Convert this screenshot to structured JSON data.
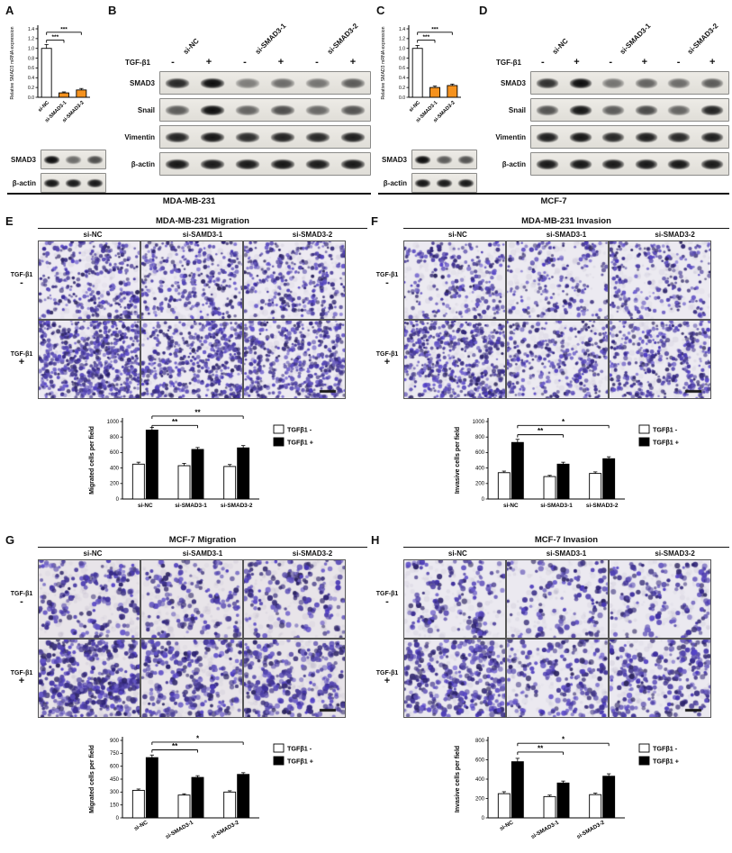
{
  "colors": {
    "knockdown_bar_orange": "#f5921e",
    "tgf_minus_bar": "#ffffff",
    "tgf_plus_bar": "#000000",
    "cell_stain_purple": "#4a3f94"
  },
  "top": {
    "A": {
      "panel_label": "A",
      "cell_line": "MDA-MB-231",
      "blot": {
        "rows": [
          {
            "label": "SMAD3",
            "bands": [
              1.0,
              0.45,
              0.62
            ]
          },
          {
            "label": "β-actin",
            "bands": [
              0.95,
              0.92,
              0.94
            ]
          }
        ]
      }
    },
    "B": {
      "panel_label": "B",
      "group_labels": [
        "si-NC",
        "si-SMAD3-1",
        "si-SMAD3-2"
      ],
      "tgf_label": "TGF-β1",
      "lane_signs": [
        "-",
        "+",
        "-",
        "+",
        "-",
        "+"
      ],
      "blot": {
        "rows": [
          {
            "label": "SMAD3",
            "bands": [
              0.85,
              1.0,
              0.35,
              0.45,
              0.4,
              0.55
            ]
          },
          {
            "label": "Snail",
            "bands": [
              0.55,
              1.0,
              0.5,
              0.62,
              0.48,
              0.6
            ]
          },
          {
            "label": "Vimentin",
            "bands": [
              0.88,
              0.95,
              0.82,
              0.88,
              0.85,
              0.9
            ]
          },
          {
            "label": "β-actin",
            "bands": [
              0.95,
              0.93,
              0.94,
              0.95,
              0.93,
              0.94
            ]
          }
        ]
      }
    },
    "C": {
      "panel_label": "C",
      "cell_line": "MCF-7",
      "blot": {
        "rows": [
          {
            "label": "SMAD3",
            "bands": [
              1.0,
              0.55,
              0.6
            ]
          },
          {
            "label": "β-actin",
            "bands": [
              0.95,
              0.93,
              0.94
            ]
          }
        ]
      }
    },
    "D": {
      "panel_label": "D",
      "group_labels": [
        "si-NC",
        "si-SMAD3-1",
        "si-SMAD3-2"
      ],
      "tgf_label": "TGF-β1",
      "lane_signs": [
        "-",
        "+",
        "-",
        "+",
        "-",
        "+"
      ],
      "blot": {
        "rows": [
          {
            "label": "SMAD3",
            "bands": [
              0.8,
              1.0,
              0.4,
              0.5,
              0.45,
              0.55
            ]
          },
          {
            "label": "Snail",
            "bands": [
              0.6,
              0.95,
              0.55,
              0.65,
              0.5,
              0.88
            ]
          },
          {
            "label": "Vimentin",
            "bands": [
              0.9,
              0.95,
              0.85,
              0.9,
              0.85,
              0.9
            ]
          },
          {
            "label": "β-actin",
            "bands": [
              0.94,
              0.95,
              0.93,
              0.94,
              0.95,
              0.93
            ]
          }
        ]
      }
    }
  },
  "transwell": {
    "E": {
      "panel_label": "E",
      "title": "MDA-MB-231 Migration",
      "col_headers": [
        "si-NC",
        "si-SAMD3-1",
        "si-SMAD3-2"
      ],
      "row_labels": [
        {
          "line1": "TGF-β1",
          "line2": "-"
        },
        {
          "line1": "TGF-β1",
          "line2": "+"
        }
      ]
    },
    "F": {
      "panel_label": "F",
      "title": "MDA-MB-231 Invasion",
      "col_headers": [
        "si-NC",
        "si-SMAD3-1",
        "si-SMAD3-2"
      ],
      "row_labels": [
        {
          "line1": "TGF-β1",
          "line2": "-"
        },
        {
          "line1": "TGF-β1",
          "line2": "+"
        }
      ]
    },
    "G": {
      "panel_label": "G",
      "title": "MCF-7 Migration",
      "col_headers": [
        "si-NC",
        "si-SAMD3-1",
        "si-SMAD3-2"
      ],
      "row_labels": [
        {
          "line1": "TGF-β1",
          "line2": "-"
        },
        {
          "line1": "TGF-β1",
          "line2": "+"
        }
      ]
    },
    "H": {
      "panel_label": "H",
      "title": "MCF-7 Invasion",
      "col_headers": [
        "si-NC",
        "si-SMAD3-1",
        "si-SMAD3-2"
      ],
      "row_labels": [
        {
          "line1": "TGF-β1",
          "line2": "-"
        },
        {
          "line1": "TGF-β1",
          "line2": "+"
        }
      ]
    }
  },
  "chart_data": [
    {
      "id": "A",
      "type": "bar",
      "title": "",
      "xlabel": "",
      "ylabel": "Relative SMAD3 mRNA expression",
      "categories": [
        "si-NC",
        "si-SMAD3-1",
        "si-SMAD3-2"
      ],
      "values": [
        1.0,
        0.09,
        0.15
      ],
      "errors": [
        0.08,
        0.02,
        0.03
      ],
      "bar_colors": [
        "#ffffff",
        "#f5921e",
        "#f5921e"
      ],
      "ylim": [
        0,
        1.4
      ],
      "ytick_step": 0.2,
      "significance": [
        {
          "from": 0,
          "to": 1,
          "label": "***",
          "y": 1.17
        },
        {
          "from": 0,
          "to": 2,
          "label": "***",
          "y": 1.33
        }
      ]
    },
    {
      "id": "C",
      "type": "bar",
      "title": "",
      "xlabel": "",
      "ylabel": "Relative SMAD3 mRNA expression",
      "categories": [
        "si-NC",
        "si-SMAD3-1",
        "si-SMAD3-2"
      ],
      "values": [
        1.0,
        0.2,
        0.24
      ],
      "errors": [
        0.06,
        0.03,
        0.03
      ],
      "bar_colors": [
        "#ffffff",
        "#f5921e",
        "#f5921e"
      ],
      "ylim": [
        0,
        1.4
      ],
      "ytick_step": 0.2,
      "significance": [
        {
          "from": 0,
          "to": 1,
          "label": "***",
          "y": 1.17
        },
        {
          "from": 0,
          "to": 2,
          "label": "***",
          "y": 1.33
        }
      ]
    },
    {
      "id": "E",
      "type": "bar",
      "title": "",
      "xlabel": "",
      "ylabel": "Migrated cells per field",
      "categories": [
        "si-NC",
        "si-SMAD3-1",
        "si-SMAD3-2"
      ],
      "series": [
        {
          "name": "TGFβ1 -",
          "color": "#ffffff",
          "values": [
            450,
            430,
            420
          ],
          "errors": [
            25,
            30,
            25
          ]
        },
        {
          "name": "TGFβ1 +",
          "color": "#000000",
          "values": [
            890,
            640,
            660
          ],
          "errors": [
            35,
            25,
            30
          ]
        }
      ],
      "ylim": [
        0,
        1000
      ],
      "ytick_step": 200,
      "legend_position": "right",
      "significance": [
        {
          "from": 0,
          "to": 1,
          "label": "**",
          "y": 950
        },
        {
          "from": 0,
          "to": 2,
          "label": "**",
          "y": 1070
        }
      ]
    },
    {
      "id": "F",
      "type": "bar",
      "title": "",
      "xlabel": "",
      "ylabel": "Invasive cells per field",
      "categories": [
        "si-NC",
        "si-SMAD3-1",
        "si-SMAD3-2"
      ],
      "series": [
        {
          "name": "TGFβ1 -",
          "color": "#ffffff",
          "values": [
            340,
            290,
            330
          ],
          "errors": [
            20,
            15,
            20
          ]
        },
        {
          "name": "TGFβ1 +",
          "color": "#000000",
          "values": [
            730,
            450,
            520
          ],
          "errors": [
            40,
            25,
            25
          ]
        }
      ],
      "ylim": [
        0,
        1000
      ],
      "ytick_step": 200,
      "legend_position": "right",
      "significance": [
        {
          "from": 0,
          "to": 1,
          "label": "**",
          "y": 830
        },
        {
          "from": 0,
          "to": 2,
          "label": "*",
          "y": 950
        }
      ]
    },
    {
      "id": "G",
      "type": "bar",
      "title": "",
      "xlabel": "",
      "ylabel": "Migrated cells per field",
      "categories": [
        "si-NC",
        "si-SMAD3-1",
        "si-SMAD3-2"
      ],
      "series": [
        {
          "name": "TGFβ1 -",
          "color": "#ffffff",
          "values": [
            320,
            265,
            300
          ],
          "errors": [
            15,
            15,
            15
          ]
        },
        {
          "name": "TGFβ1 +",
          "color": "#000000",
          "values": [
            700,
            470,
            505
          ],
          "errors": [
            30,
            20,
            20
          ]
        }
      ],
      "ylim": [
        0,
        900
      ],
      "ytick_step": 150,
      "legend_position": "right",
      "significance": [
        {
          "from": 0,
          "to": 1,
          "label": "**",
          "y": 790
        },
        {
          "from": 0,
          "to": 2,
          "label": "*",
          "y": 880
        }
      ]
    },
    {
      "id": "H",
      "type": "bar",
      "title": "",
      "xlabel": "",
      "ylabel": "Invasive cells per field",
      "categories": [
        "si-NC",
        "si-SMAD3-1",
        "si-SMAD3-2"
      ],
      "series": [
        {
          "name": "TGFβ1 -",
          "color": "#ffffff",
          "values": [
            250,
            220,
            240
          ],
          "errors": [
            20,
            15,
            15
          ]
        },
        {
          "name": "TGFβ1 +",
          "color": "#000000",
          "values": [
            580,
            360,
            430
          ],
          "errors": [
            35,
            20,
            25
          ]
        }
      ],
      "ylim": [
        0,
        800
      ],
      "ytick_step": 200,
      "legend_position": "right",
      "significance": [
        {
          "from": 0,
          "to": 1,
          "label": "**",
          "y": 680
        },
        {
          "from": 0,
          "to": 2,
          "label": "*",
          "y": 770
        }
      ]
    }
  ]
}
